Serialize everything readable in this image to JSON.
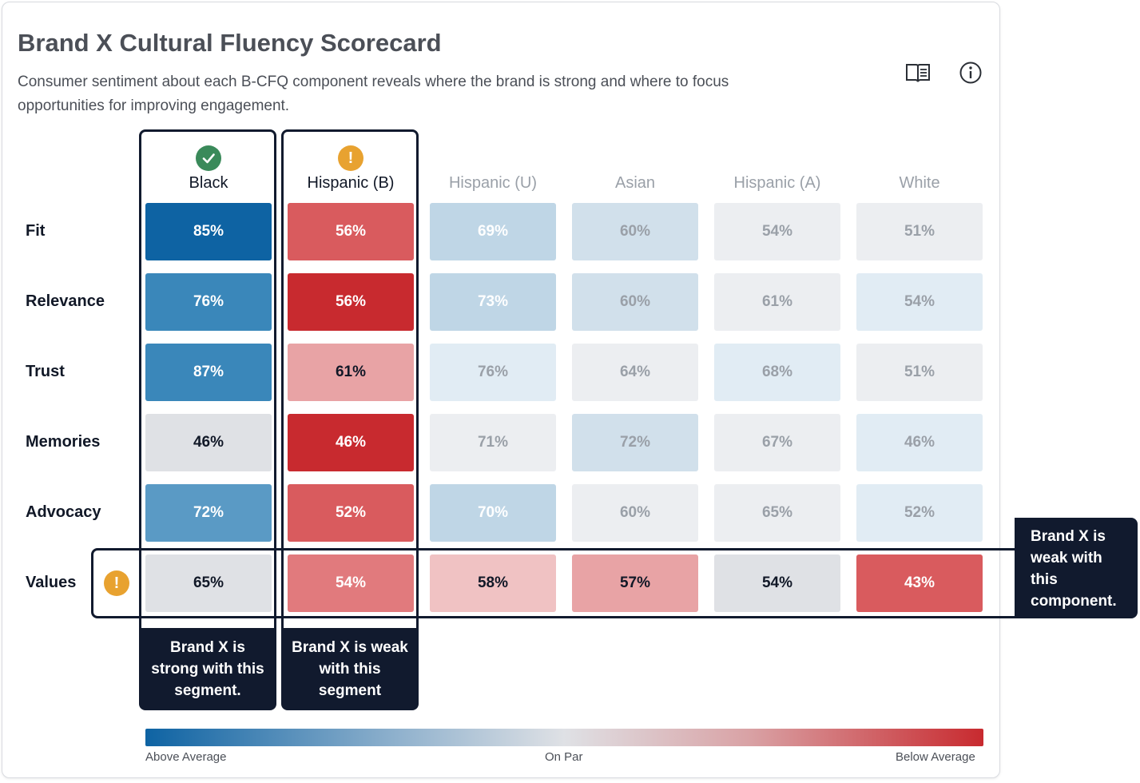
{
  "header": {
    "title": "Brand X Cultural Fluency Scorecard",
    "subtitle": "Consumer sentiment about each B-CFQ component reveals where the brand is strong and where to focus opportunities for improving engagement.",
    "book_icon": "open-book-icon",
    "info_icon": "info-icon"
  },
  "colors": {
    "strong": "#0e63a3",
    "weak": "#c82a2f",
    "neutral": "#dfe1e5",
    "callout": "#111a2e",
    "check": "#3a8a5a",
    "alert": "#e8a230"
  },
  "chart_data": {
    "type": "heatmap",
    "columns": [
      "Black",
      "Hispanic (B)",
      "Hispanic (U)",
      "Asian",
      "Hispanic (A)",
      "White"
    ],
    "rows": [
      "Fit",
      "Relevance",
      "Trust",
      "Memories",
      "Advocacy",
      "Values"
    ],
    "values": [
      [
        "85%",
        "56%",
        "69%",
        "60%",
        "54%",
        "51%"
      ],
      [
        "76%",
        "56%",
        "73%",
        "60%",
        "61%",
        "54%"
      ],
      [
        "87%",
        "61%",
        "76%",
        "64%",
        "68%",
        "51%"
      ],
      [
        "46%",
        "46%",
        "71%",
        "72%",
        "67%",
        "46%"
      ],
      [
        "72%",
        "52%",
        "70%",
        "60%",
        "65%",
        "52%"
      ],
      [
        "65%",
        "54%",
        "58%",
        "57%",
        "54%",
        "43%"
      ]
    ],
    "cell_colors": [
      [
        "#0e63a3",
        "#d95b5e",
        "#bfd6e6",
        "#d1e0eb",
        "#eceef1",
        "#eceef1"
      ],
      [
        "#3a87ba",
        "#c82a2f",
        "#bfd6e6",
        "#d1e0eb",
        "#eceef1",
        "#e1ecf4"
      ],
      [
        "#3a87ba",
        "#e8a3a5",
        "#e1ecf4",
        "#eceef1",
        "#e1ecf4",
        "#eceef1"
      ],
      [
        "#dfe1e5",
        "#c82a2f",
        "#eceef1",
        "#d1e0eb",
        "#eceef1",
        "#e1ecf4"
      ],
      [
        "#5a9ac5",
        "#d95b5e",
        "#bfd6e6",
        "#eceef1",
        "#eceef1",
        "#e1ecf4"
      ],
      [
        "#dfe1e5",
        "#e17a7d",
        "#f0c2c3",
        "#e8a3a5",
        "#dfe1e5",
        "#d95b5e"
      ]
    ],
    "text_colors": [
      [
        "#ffffff",
        "#ffffff",
        "#ffffff",
        "#9aa0a8",
        "#9aa0a8",
        "#9aa0a8"
      ],
      [
        "#ffffff",
        "#ffffff",
        "#ffffff",
        "#9aa0a8",
        "#9aa0a8",
        "#9aa0a8"
      ],
      [
        "#ffffff",
        "#111827",
        "#9aa0a8",
        "#9aa0a8",
        "#9aa0a8",
        "#9aa0a8"
      ],
      [
        "#111827",
        "#ffffff",
        "#9aa0a8",
        "#9aa0a8",
        "#9aa0a8",
        "#9aa0a8"
      ],
      [
        "#ffffff",
        "#ffffff",
        "#ffffff",
        "#9aa0a8",
        "#9aa0a8",
        "#9aa0a8"
      ],
      [
        "#111827",
        "#ffffff",
        "#111827",
        "#111827",
        "#111827",
        "#ffffff"
      ]
    ],
    "legend": {
      "left": "Above Average",
      "center": "On Par",
      "right": "Below Average"
    }
  },
  "highlights": {
    "black_status_icon": "check-icon",
    "hispanic_b_status_icon": "alert-icon",
    "values_row_status_icon": "alert-icon",
    "black_callout": "Brand X is strong with this segment.",
    "hispanic_b_callout": "Brand X is weak with this segment",
    "values_callout": "Brand X is weak with this component."
  }
}
